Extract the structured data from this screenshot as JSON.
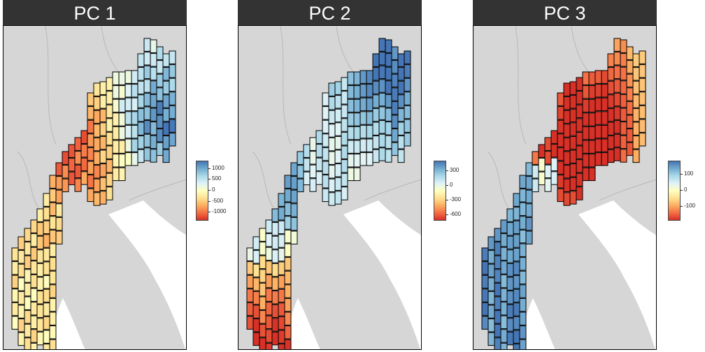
{
  "chart_data": [
    {
      "type": "heatmap",
      "title": "PC 1",
      "legend": {
        "ticks": [
          1000,
          500,
          0,
          -500,
          -1000
        ],
        "labels": [
          "1000",
          "500",
          "0",
          "-500",
          "-1000"
        ],
        "range": [
          -1350,
          1350
        ]
      },
      "colors": [
        "#d73027",
        "#f46d43",
        "#fdae61",
        "#fee090",
        "#ffffbf",
        "#e0f3f8",
        "#abd9e9",
        "#74add1",
        "#4575b4"
      ],
      "pattern": "pc1"
    },
    {
      "type": "heatmap",
      "title": "PC 2",
      "legend": {
        "ticks": [
          300,
          0,
          -300,
          -600
        ],
        "labels": [
          "300",
          "0",
          "-300",
          "-600"
        ],
        "range": [
          -700,
          500
        ]
      },
      "colors": [
        "#d73027",
        "#f46d43",
        "#fdae61",
        "#fee090",
        "#ffffbf",
        "#e0f3f8",
        "#abd9e9",
        "#74add1",
        "#4575b4"
      ],
      "pattern": "pc2"
    },
    {
      "type": "heatmap",
      "title": "PC 3",
      "legend": {
        "ticks": [
          100,
          0,
          -100
        ],
        "labels": [
          "100",
          "0",
          "-100"
        ],
        "range": [
          -180,
          180
        ]
      },
      "colors": [
        "#d73027",
        "#f46d43",
        "#fdae61",
        "#fee090",
        "#ffffbf",
        "#e0f3f8",
        "#abd9e9",
        "#74add1",
        "#4575b4"
      ],
      "pattern": "pc3"
    }
  ]
}
